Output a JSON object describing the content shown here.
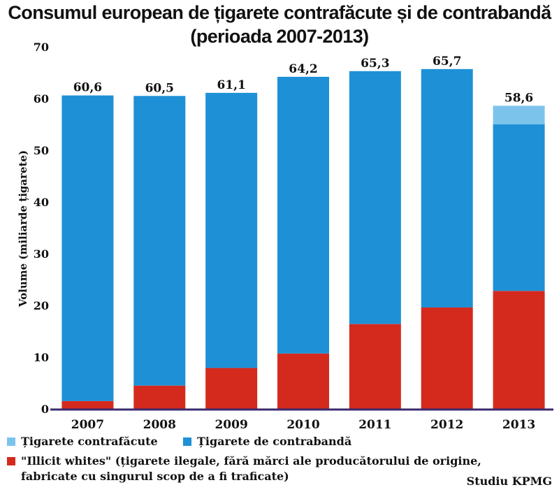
{
  "chart_data": {
    "type": "bar",
    "stacked": true,
    "title_line1": "Consumul european de țigarete contrafăcute și de contrabandă",
    "title_line2": "(perioada 2007-2013)",
    "ylabel": "Volume (miliarde țigarete)",
    "xlabel": "",
    "ylim": [
      0,
      70
    ],
    "yticks": [
      0,
      10,
      20,
      30,
      40,
      50,
      60,
      70
    ],
    "categories": [
      "2007",
      "2008",
      "2009",
      "2010",
      "2011",
      "2012",
      "2013"
    ],
    "series": [
      {
        "name": "\"Illicit whites\" (țigarete ilegale, fără mărci ale producătorului de origine, fabricate cu singurul scop de a fi traficate)",
        "color": "#d42a1e",
        "values": [
          1.5,
          4.5,
          7.9,
          10.7,
          16.4,
          19.6,
          22.8
        ]
      },
      {
        "name": "Țigarete de contrabandă",
        "color": "#1e90d6",
        "values": [
          59.1,
          56.0,
          53.2,
          53.5,
          48.9,
          46.1,
          32.2
        ]
      },
      {
        "name": "Țigarete contrafăcute",
        "color": "#7cc3ec",
        "values": [
          0,
          0,
          0,
          0,
          0,
          0,
          3.6
        ]
      }
    ],
    "totals": [
      "60,6",
      "60,5",
      "61,1",
      "64,2",
      "65,3",
      "65,7",
      "58,6"
    ]
  },
  "legend": {
    "counterfeit": "Țigarete contrafăcute",
    "contraband": "Țigarete de contrabandă",
    "illicit_line1": "\"Illicit whites\" (țigarete ilegale, fără mărci ale producătorului de origine,",
    "illicit_line2": "fabricate cu singurul scop de a fi traficate)"
  },
  "source": "Studiu KPMG",
  "colors": {
    "red": "#d42a1e",
    "blue": "#1e90d6",
    "light_blue": "#7cc3ec",
    "axis": "#3a2a6e"
  }
}
